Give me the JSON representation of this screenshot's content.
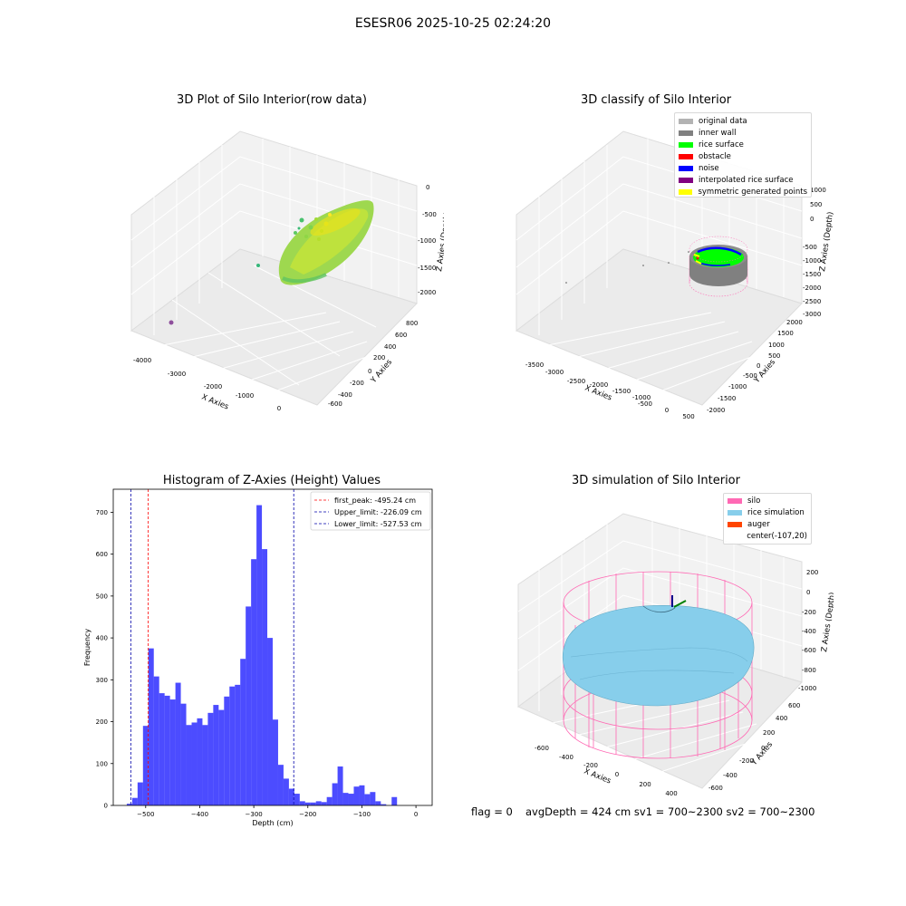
{
  "suptitle": "ESESR06 2025-10-25 02:24:20",
  "panels": {
    "raw": {
      "title": "3D Plot of Silo Interior(row data)",
      "xlabel": "X Axies",
      "ylabel": "Y Axies",
      "zlabel": "Z Axies (Depth)",
      "xticks": [
        "-4000",
        "-3000",
        "-2000",
        "-1000",
        "0"
      ],
      "yticks": [
        "-600",
        "-400",
        "-200",
        "0",
        "200",
        "400",
        "600",
        "800"
      ],
      "zticks": [
        "0",
        "-500",
        "-1000",
        "-1500",
        "-2000"
      ]
    },
    "classify": {
      "title": "3D classify of Silo Interior",
      "xlabel": "X Axies",
      "ylabel": "Y Axies",
      "zlabel": "Z Axies (Depth)",
      "xticks": [
        "-3500",
        "-3000",
        "-2500",
        "-2000",
        "-1500",
        "-1000",
        "-500",
        "0",
        "500"
      ],
      "yticks": [
        "-2000",
        "-1500",
        "-1000",
        "-500",
        "0",
        "500",
        "1000",
        "1500",
        "2000"
      ],
      "zticks": [
        "1000",
        "500",
        "0",
        "-500",
        "-1000",
        "-1500",
        "-2000",
        "-2500",
        "-3000"
      ],
      "legend": [
        {
          "label": "original data",
          "color": "#b3b3b3"
        },
        {
          "label": "inner wall",
          "color": "#808080"
        },
        {
          "label": "rice surface",
          "color": "#00ff00"
        },
        {
          "label": "obstacle",
          "color": "#ff0000"
        },
        {
          "label": "noise",
          "color": "#0000ff"
        },
        {
          "label": "interpolated rice surface",
          "color": "#800080"
        },
        {
          "label": "symmetric generated points",
          "color": "#ffff00"
        }
      ]
    },
    "simulation": {
      "title": "3D simulation of Silo Interior",
      "xlabel": "X Axies",
      "ylabel": "Y Axies",
      "zlabel": "Z Axies (Depth)",
      "xticks": [
        "-600",
        "-400",
        "-200",
        "0",
        "200",
        "400"
      ],
      "yticks": [
        "-600",
        "-400",
        "-200",
        "0",
        "200",
        "400",
        "600"
      ],
      "zticks": [
        "200",
        "0",
        "-200",
        "-400",
        "-600",
        "-800",
        "-1000"
      ],
      "legend": [
        {
          "label": "silo",
          "color": "#ff69b4"
        },
        {
          "label": "rice simulation",
          "color": "#87ceeb"
        },
        {
          "label": "auger",
          "color": "#ff4500"
        },
        {
          "label": "center(-107,20)",
          "color": ""
        }
      ]
    }
  },
  "footer": {
    "flag": "flag = 0",
    "stats": "avgDepth = 424 cm  sv1 = 700~2300  sv2 = 700~2300"
  },
  "chart_data": [
    {
      "type": "bar",
      "title": "Histogram of Z-Axies (Height) Values",
      "xlabel": "Depth (cm)",
      "ylabel": "Frequency",
      "xlim": [
        -560,
        30
      ],
      "ylim": [
        0,
        755
      ],
      "xticks": [
        -500,
        -400,
        -300,
        -200,
        -100,
        0
      ],
      "yticks": [
        0,
        100,
        200,
        300,
        400,
        500,
        600,
        700
      ],
      "bin_start": -535,
      "bin_width": 10,
      "values": [
        4,
        18,
        55,
        190,
        375,
        308,
        268,
        262,
        253,
        293,
        243,
        192,
        198,
        208,
        192,
        221,
        240,
        228,
        260,
        284,
        288,
        350,
        475,
        588,
        717,
        612,
        400,
        205,
        97,
        64,
        40,
        28,
        10,
        7,
        7,
        10,
        8,
        20,
        53,
        93,
        30,
        28,
        45,
        48,
        27,
        32,
        10,
        3,
        0,
        20
      ],
      "color": "#0000ff",
      "vlines": [
        {
          "label": "first_peak: -495.24 cm",
          "value": -495.24,
          "color": "#ff0000"
        },
        {
          "label": "Upper_limit: -226.09 cm",
          "value": -226.09,
          "color": "#0000aa"
        },
        {
          "label": "Lower_limit: -527.53 cm",
          "value": -527.53,
          "color": "#0000aa"
        }
      ]
    }
  ]
}
